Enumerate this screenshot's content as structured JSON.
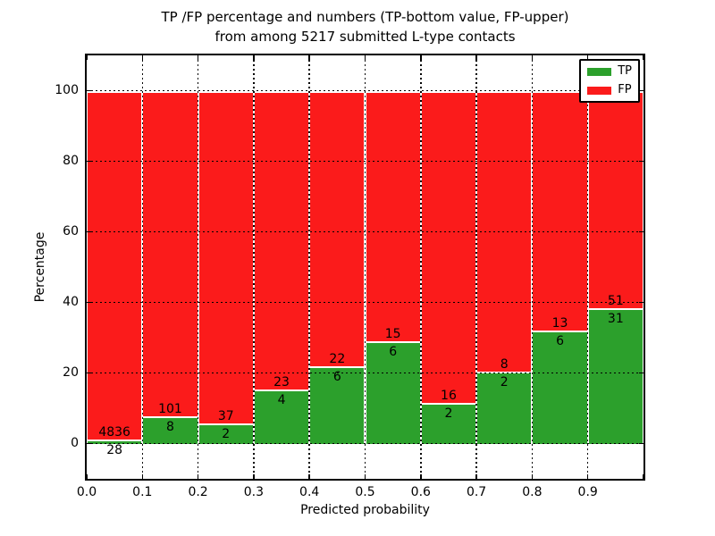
{
  "chart_data": {
    "type": "bar",
    "stacked": true,
    "normalized": "each bin stacked to 100%",
    "title_line1": "TP /FP percentage and numbers (TP-bottom value, FP-upper)",
    "title_line2": "from among 5217 submitted L-type contacts",
    "title": "TP /FP percentage and numbers (TP-bottom value, FP-upper) from among 5217 submitted L-type contacts",
    "xlabel": "Predicted probability",
    "ylabel": "Percentage",
    "total_contacts": 5217,
    "xlim": [
      0.0,
      1.0
    ],
    "ylim": [
      -10,
      110
    ],
    "bin_width": 0.1,
    "grid": "dotted",
    "legend_position": "upper right",
    "categories": [
      "0.0-0.1",
      "0.1-0.2",
      "0.2-0.3",
      "0.3-0.4",
      "0.4-0.5",
      "0.5-0.6",
      "0.6-0.7",
      "0.7-0.8",
      "0.8-0.9",
      "0.9-1.0"
    ],
    "x_tick_labels": [
      "0.0",
      "0.1",
      "0.2",
      "0.3",
      "0.4",
      "0.5",
      "0.6",
      "0.7",
      "0.8",
      "0.9"
    ],
    "y_ticks": [
      0,
      20,
      40,
      60,
      80,
      100
    ],
    "series": [
      {
        "name": "TP",
        "color": "#2ca02c",
        "position": "bottom",
        "counts": [
          28,
          8,
          2,
          4,
          6,
          6,
          2,
          2,
          6,
          31
        ]
      },
      {
        "name": "FP",
        "color": "#fb1b1b",
        "position": "upper",
        "counts": [
          4836,
          101,
          37,
          23,
          22,
          15,
          16,
          8,
          13,
          51
        ]
      }
    ]
  },
  "colors": {
    "tp": "#2ca02c",
    "fp": "#fb1b1b",
    "grid": "#000000",
    "spine": "#000000",
    "bar_edge": "#ffffff",
    "background": "#ffffff"
  }
}
